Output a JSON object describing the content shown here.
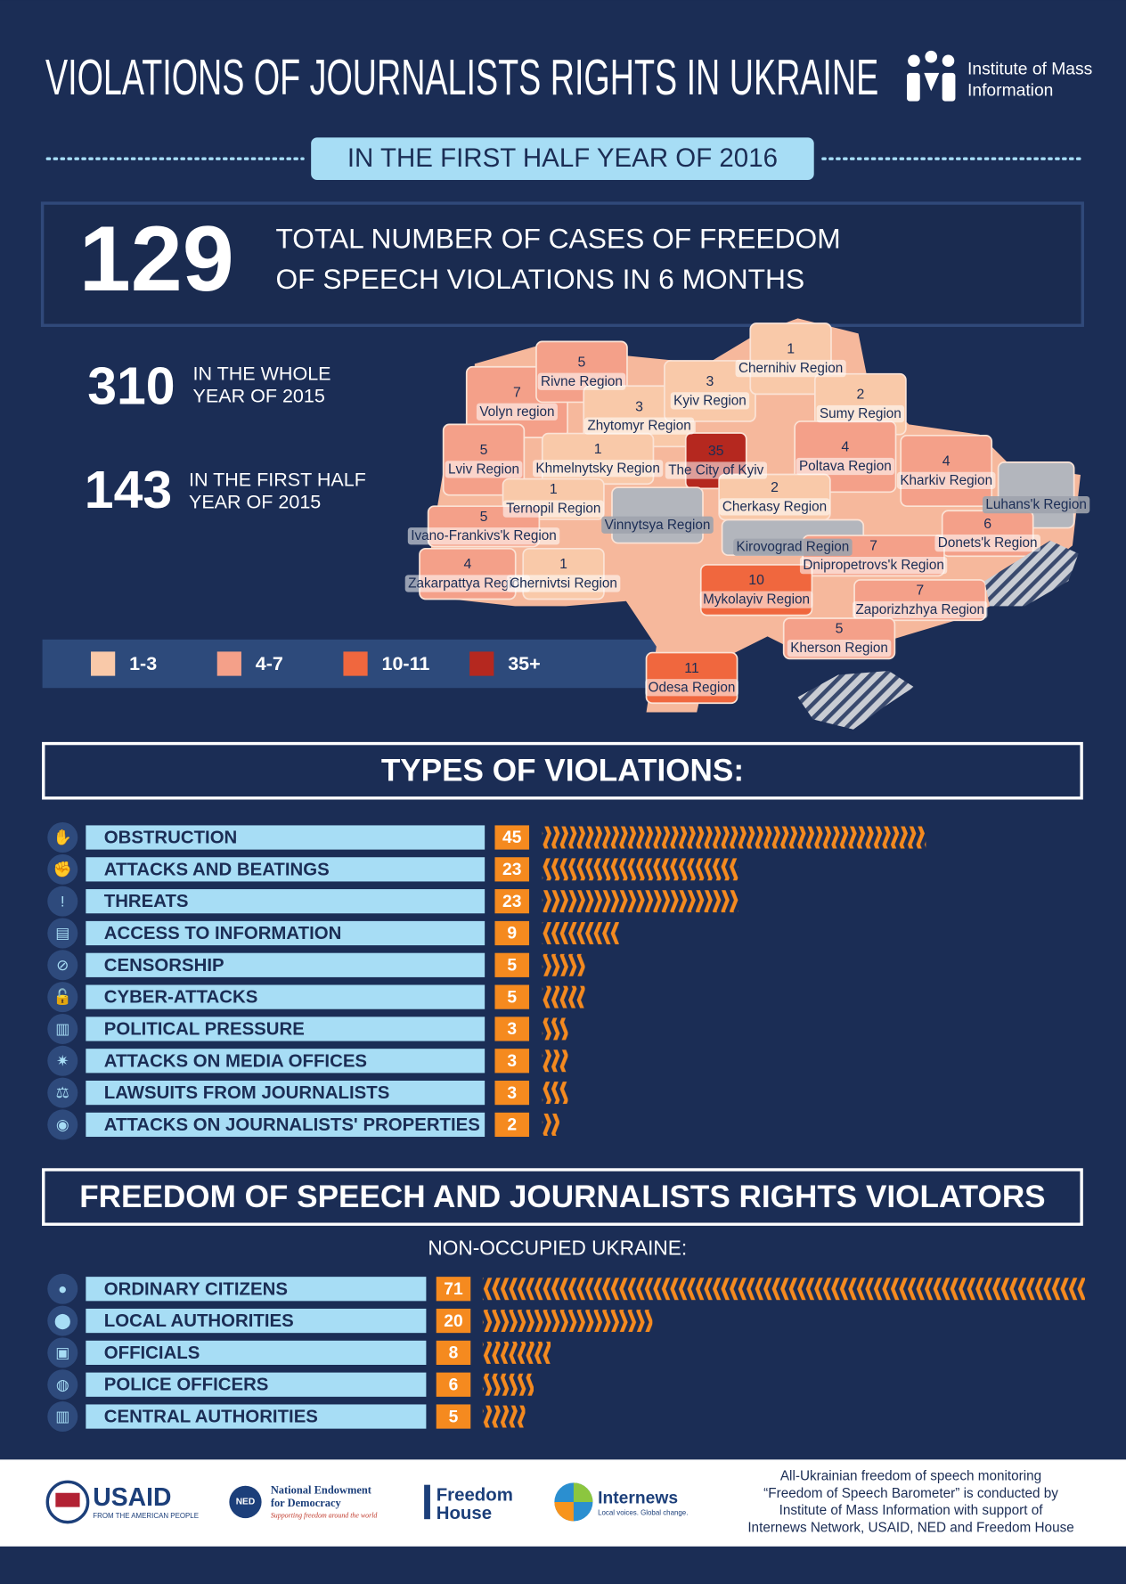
{
  "header": {
    "title": "VIOLATIONS OF JOURNALISTS RIGHTS IN UKRAINE",
    "logo_lines": [
      "Institute of Mass",
      "Information"
    ],
    "subtitle": "IN THE FIRST HALF YEAR OF 2016"
  },
  "total": {
    "value": 129,
    "label_lines": [
      "TOTAL NUMBER OF CASES OF FREEDOM",
      "OF SPEECH VIOLATIONS IN 6 MONTHS"
    ]
  },
  "comparisons": [
    {
      "value": 310,
      "label_lines": [
        "IN THE WHOLE",
        "YEAR OF 2015"
      ]
    },
    {
      "value": 143,
      "label_lines": [
        "IN THE FIRST HALF",
        "YEAR OF 2015"
      ]
    }
  ],
  "map": {
    "regions": [
      {
        "name": "Volyn region",
        "value": 7,
        "color": "#f4a089"
      },
      {
        "name": "Rivne Region",
        "value": 5,
        "color": "#f4a089"
      },
      {
        "name": "Zhytomyr Region",
        "value": 3,
        "color": "#f9c9a9"
      },
      {
        "name": "Kyiv Region",
        "value": 3,
        "color": "#f9c9a9"
      },
      {
        "name": "Chernihiv Region",
        "value": 1,
        "color": "#f9c9a9"
      },
      {
        "name": "Sumy Region",
        "value": 2,
        "color": "#f9c9a9"
      },
      {
        "name": "Lviv Region",
        "value": 5,
        "color": "#f4a089"
      },
      {
        "name": "Khmelnytsky Region",
        "value": 1,
        "color": "#f9c9a9"
      },
      {
        "name": "The City of Kyiv",
        "value": 35,
        "color": "#b5281f"
      },
      {
        "name": "Poltava Region",
        "value": 4,
        "color": "#f4a089"
      },
      {
        "name": "Kharkiv Region",
        "value": 4,
        "color": "#f4a089"
      },
      {
        "name": "Luhans'k Region",
        "value": null,
        "color": "#b3b6bd"
      },
      {
        "name": "Ternopil Region",
        "value": 1,
        "color": "#f9c9a9"
      },
      {
        "name": "Cherkasy Region",
        "value": 2,
        "color": "#f9c9a9"
      },
      {
        "name": "Vinnytsya Region",
        "value": null,
        "color": "#b3b6bd"
      },
      {
        "name": "Ivano-Frankivs'k Region",
        "value": 5,
        "color": "#f4a089"
      },
      {
        "name": "Kirovograd Region",
        "value": null,
        "color": "#b3b6bd"
      },
      {
        "name": "Donets'k Region",
        "value": 6,
        "color": "#f4a089"
      },
      {
        "name": "Dnipropetrovs'k Region",
        "value": 7,
        "color": "#f4a089"
      },
      {
        "name": "Zakarpattya Region",
        "value": 4,
        "color": "#f4a089"
      },
      {
        "name": "Chernivtsi Region",
        "value": 1,
        "color": "#f9c9a9"
      },
      {
        "name": "Mykolayiv Region",
        "value": 10,
        "color": "#f0673e"
      },
      {
        "name": "Zaporizhzhya Region",
        "value": 7,
        "color": "#f4a089"
      },
      {
        "name": "Kherson Region",
        "value": 5,
        "color": "#f4a089"
      },
      {
        "name": "Odesa Region",
        "value": 11,
        "color": "#f0673e"
      }
    ],
    "legend": [
      {
        "label": "1-3",
        "color": "#f9c9a9"
      },
      {
        "label": "4-7",
        "color": "#f4a089"
      },
      {
        "label": "10-11",
        "color": "#f0673e"
      },
      {
        "label": "35+",
        "color": "#b5281f"
      }
    ]
  },
  "types": {
    "title": "TYPES OF VIOLATIONS:",
    "items": [
      {
        "name": "OBSTRUCTION",
        "value": 45
      },
      {
        "name": "ATTACKS AND BEATINGS",
        "value": 23
      },
      {
        "name": "THREATS",
        "value": 23
      },
      {
        "name": "ACCESS TO INFORMATION",
        "value": 9
      },
      {
        "name": "CENSORSHIP",
        "value": 5
      },
      {
        "name": "CYBER-ATTACKS",
        "value": 5
      },
      {
        "name": "POLITICAL PRESSURE",
        "value": 3
      },
      {
        "name": "ATTACKS ON MEDIA OFFICES",
        "value": 3
      },
      {
        "name": "LAWSUITS FROM JOURNALISTS",
        "value": 3
      },
      {
        "name": "ATTACKS ON JOURNALISTS' PROPERTIES",
        "value": 2
      }
    ]
  },
  "violators": {
    "title": "FREEDOM OF SPEECH AND JOURNALISTS RIGHTS VIOLATORS",
    "subtitle": "NON-OCCUPIED UKRAINE:",
    "items": [
      {
        "name": "ORDINARY CITIZENS",
        "value": 71
      },
      {
        "name": "LOCAL AUTHORITIES",
        "value": 20
      },
      {
        "name": "OFFICIALS",
        "value": 8
      },
      {
        "name": "POLICE OFFICERS",
        "value": 6
      },
      {
        "name": "CENTRAL AUTHORITIES",
        "value": 5
      }
    ]
  },
  "footer": {
    "usaid": {
      "name": "USAID",
      "tagline": "FROM THE AMERICAN PEOPLE"
    },
    "ned": {
      "abbr": "NED",
      "lines": [
        "National Endowment",
        "for Democracy"
      ],
      "tagline": "Supporting freedom around the world"
    },
    "freedom_house": {
      "lines": [
        "Freedom",
        "House"
      ]
    },
    "internews": {
      "name": "Internews",
      "tagline": "Local voices. Global change."
    },
    "note_lines": [
      "All-Ukrainian freedom of speech monitoring",
      "“Freedom of Speech Barometer” is conducted by",
      "Institute of Mass Information with support of",
      "Internews Network, USAID, NED and Freedom House"
    ]
  }
}
